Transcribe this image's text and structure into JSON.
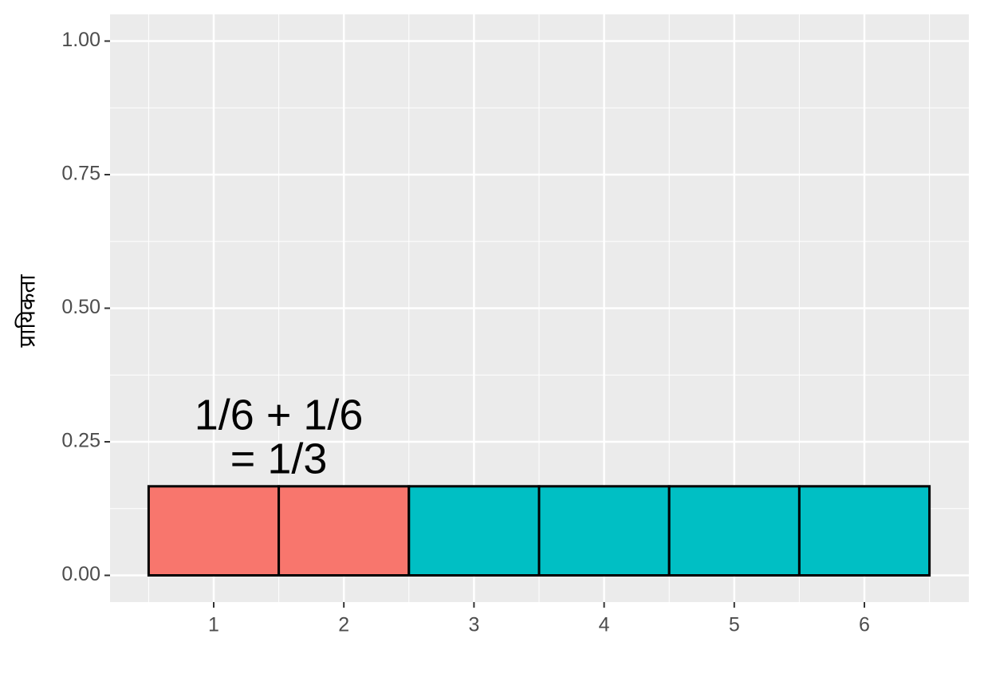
{
  "chart_data": {
    "type": "bar",
    "y_label": "प्रायिकता",
    "annotation": [
      "1/6 + 1/6",
      "= 1/3"
    ],
    "categories": [
      "1",
      "2",
      "3",
      "4",
      "5",
      "6"
    ],
    "values": [
      0.1667,
      0.1667,
      0.1667,
      0.1667,
      0.1667,
      0.1667
    ],
    "colors": [
      "#F8766D",
      "#F8766D",
      "#00BFC4",
      "#00BFC4",
      "#00BFC4",
      "#00BFC4"
    ],
    "ylim": [
      -0.05,
      1.05
    ],
    "yticks": [
      {
        "value": 0,
        "label": "0.00"
      },
      {
        "value": 0.25,
        "label": "0.25"
      },
      {
        "value": 0.5,
        "label": "0.50"
      },
      {
        "value": 0.75,
        "label": "0.75"
      },
      {
        "value": 1,
        "label": "1.00"
      }
    ],
    "grid": true
  }
}
